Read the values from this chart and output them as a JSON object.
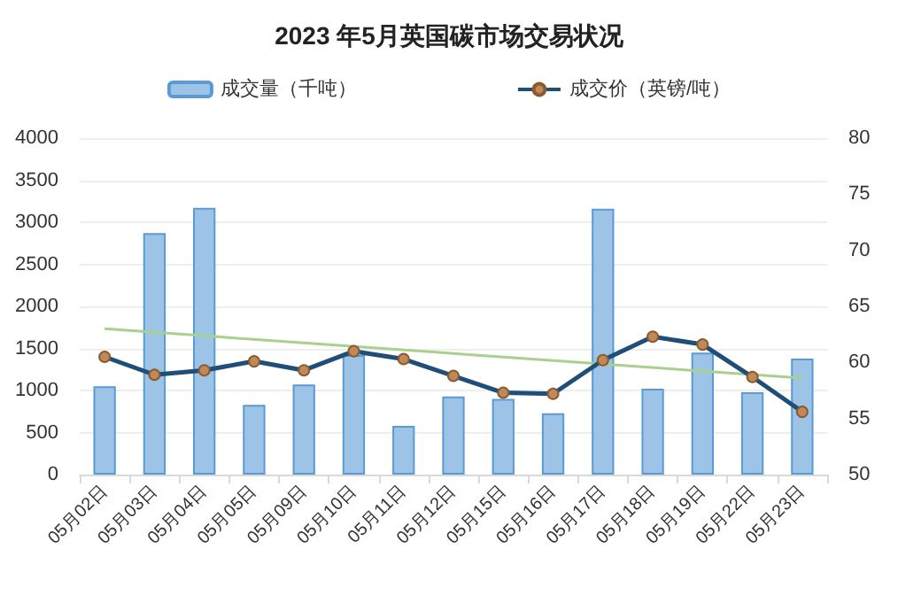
{
  "chart_data": {
    "type": "bar",
    "title": "2023 年5月英国碳市场交易状况",
    "categories": [
      "05月02日",
      "05月03日",
      "05月04日",
      "05月05日",
      "05月09日",
      "05月10日",
      "05月11日",
      "05月12日",
      "05月15日",
      "05月16日",
      "05月17日",
      "05月18日",
      "05月19日",
      "05月22日",
      "05月23日"
    ],
    "series": [
      {
        "name": "成交量（千吨）",
        "color": "#9dc3e6",
        "values": [
          1050,
          2870,
          3170,
          830,
          1070,
          1420,
          580,
          930,
          900,
          730,
          3160,
          1020,
          1450,
          980,
          1380
        ]
      },
      {
        "name": "成交价（英镑/吨）",
        "type": "line",
        "axis": "y2",
        "color": "#1f4e79",
        "marker": "circle",
        "values": [
          60.5,
          58.9,
          59.3,
          60.1,
          59.3,
          61.0,
          60.3,
          58.8,
          57.3,
          57.2,
          60.2,
          62.3,
          61.6,
          58.7,
          55.6
        ]
      },
      {
        "type": "line",
        "axis": "y2",
        "color": "#a9d18e",
        "marker": "none",
        "x": [
          "05月02日",
          "05月23日"
        ],
        "values": [
          63.0,
          58.6
        ]
      }
    ],
    "ylim": [
      0,
      4000
    ],
    "yticks": [
      0,
      500,
      1000,
      1500,
      2000,
      2500,
      3000,
      3500,
      4000
    ],
    "y2lim": [
      50,
      80
    ],
    "y2ticks": [
      50,
      55,
      60,
      65,
      70,
      75,
      80
    ],
    "grid": "y",
    "legend": "top"
  }
}
